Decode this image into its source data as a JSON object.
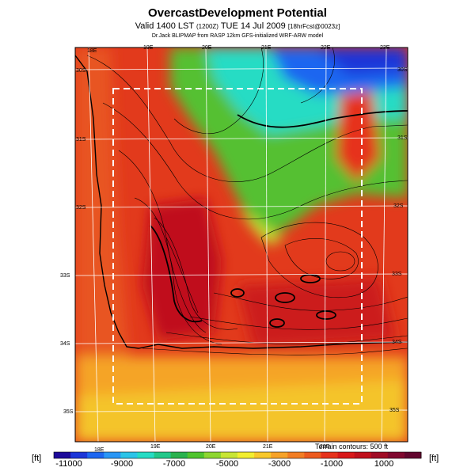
{
  "header": {
    "title": "OvercastDevelopment Potential",
    "subtitle_main": "Valid 1400 LST",
    "subtitle_small1": "(1200Z)",
    "subtitle_date": "TUE 14 Jul 2009",
    "subtitle_small2": "[18hrFcst@0023z]",
    "credit": "Dr.Jack BLIPMAP from RASP 12km GFS-initialized WRF-ARW model"
  },
  "map": {
    "lon_labels_top": [
      "18E",
      "19E",
      "20E",
      "21E",
      "22E",
      "23E"
    ],
    "lon_labels_bottom": [
      "18E",
      "19E",
      "20E",
      "21E",
      "22E"
    ],
    "lat_labels_left": [
      "30S",
      "31S",
      "32S",
      "33S",
      "34S",
      "35S"
    ],
    "lat_labels_right": [
      "30S",
      "31S",
      "32S",
      "33S",
      "34S",
      "35S"
    ],
    "terrain_note": "Terrain contours: 500 ft",
    "inner_domain": "dashed-white-box",
    "colors": {
      "frame": "#000000",
      "grid": "#ffffff",
      "coast": "#000000"
    }
  },
  "colorbar": {
    "unit_left": "[ft]",
    "unit_right": "[ft]",
    "labels": [
      "-11000",
      "-9000",
      "-7000",
      "-5000",
      "-3000",
      "-1000",
      "1000"
    ],
    "colors": [
      "#1d0a9a",
      "#1c36d8",
      "#1d66f0",
      "#2a96f5",
      "#2cc4e8",
      "#26dcc4",
      "#22c88a",
      "#2ab24e",
      "#4fc42d",
      "#8dd630",
      "#c8e534",
      "#f2ee2f",
      "#f8c82b",
      "#f6a228",
      "#f27d23",
      "#ec5a1e",
      "#e6321b",
      "#d8181a",
      "#c0101c",
      "#a00c25",
      "#80082f",
      "#62062e"
    ]
  }
}
